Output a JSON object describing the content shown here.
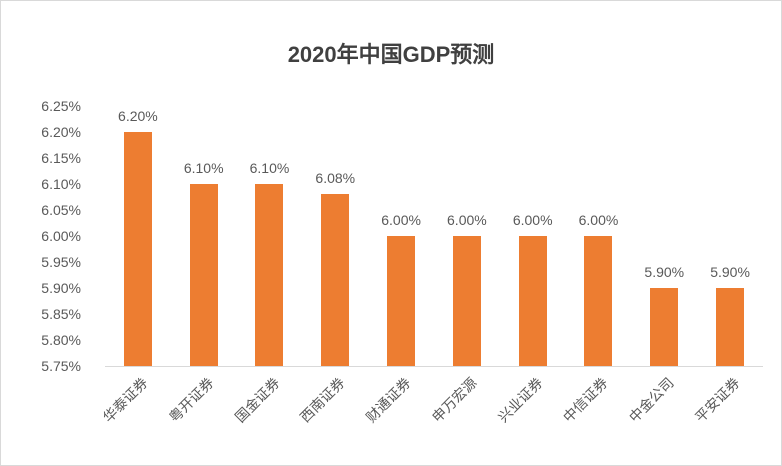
{
  "chart_data": {
    "type": "bar",
    "title": "2020年中国GDP预测",
    "categories": [
      "华泰证券",
      "粤开证券",
      "国金证券",
      "西南证券",
      "财通证券",
      "申万宏源",
      "兴业证券",
      "中信证券",
      "中金公司",
      "平安证券"
    ],
    "values": [
      6.2,
      6.1,
      6.1,
      6.08,
      6.0,
      6.0,
      6.0,
      6.0,
      5.9,
      5.9
    ],
    "data_labels": [
      "6.20%",
      "6.10%",
      "6.10%",
      "6.08%",
      "6.00%",
      "6.00%",
      "6.00%",
      "6.00%",
      "5.90%",
      "5.90%"
    ],
    "unit": "%",
    "xlabel": "",
    "ylabel": "",
    "ylim": [
      5.75,
      6.25
    ],
    "ytick_step": 0.05,
    "yticks": [
      "6.25%",
      "6.20%",
      "6.15%",
      "6.10%",
      "6.05%",
      "6.00%",
      "5.95%",
      "5.90%",
      "5.85%",
      "5.80%",
      "5.75%"
    ],
    "grid": false,
    "legend_position": "none",
    "x_label_rotation_deg": -45,
    "bar_color": "#ED7D31",
    "axis_line_color": "#D9D9D9",
    "label_color": "#595959",
    "data_label_color": "#595959",
    "title_color": "#404040"
  }
}
